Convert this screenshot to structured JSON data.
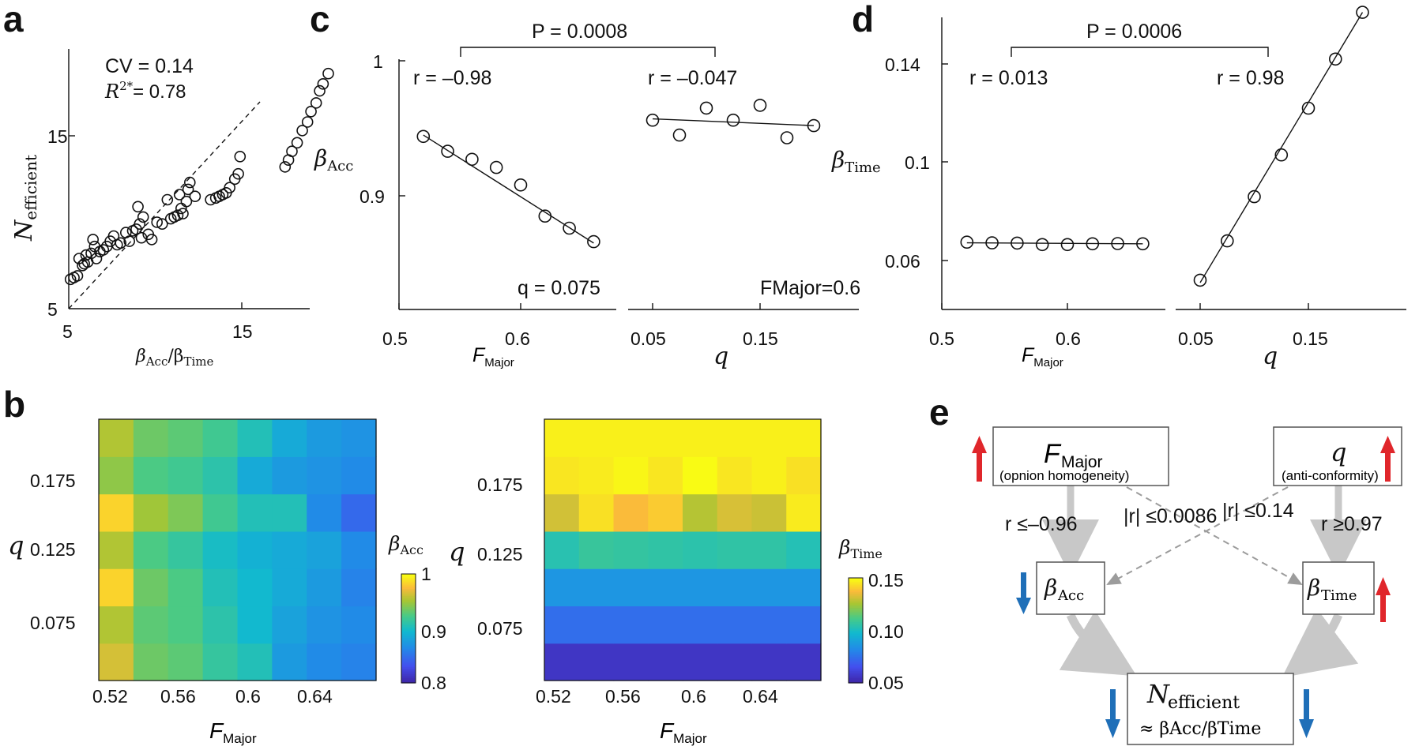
{
  "panels": {
    "a": {
      "label": "a"
    },
    "b": {
      "label": "b"
    },
    "c": {
      "label": "c"
    },
    "d": {
      "label": "d"
    },
    "e": {
      "label": "e"
    }
  },
  "chart_data": [
    {
      "id": "a",
      "type": "scatter",
      "xlabel": "βAcc/βTime",
      "ylabel": "Nefficient",
      "xlim": [
        5,
        21
      ],
      "ylim": [
        5,
        20
      ],
      "xticks": [
        "5",
        "15"
      ],
      "yticks": [
        "5",
        "15"
      ],
      "annotations": [
        "CV = 0.14",
        "R2*= 0.78"
      ],
      "reference_line": "dashed y = x",
      "x": [
        5.1,
        5.3,
        5.5,
        5.8,
        5.6,
        5.9,
        6.1,
        6.0,
        6.3,
        6.5,
        6.6,
        6.8,
        6.4,
        7.0,
        7.2,
        7.4,
        7.6,
        7.8,
        8.0,
        8.3,
        8.5,
        8.7,
        8.9,
        9.1,
        9.3,
        9.6,
        9.2,
        9.0,
        9.8,
        10.1,
        10.4,
        10.7,
        10.9,
        11.1,
        11.3,
        11.6,
        11.5,
        11.8,
        11.4,
        11.9,
        12.0,
        12.3,
        13.2,
        13.5,
        13.7,
        13.9,
        14.1,
        14.3,
        14.6,
        14.8,
        14.9,
        17.5,
        17.7,
        17.9,
        18.2,
        18.5,
        18.8,
        19.0,
        19.3,
        19.5,
        19.7,
        20.0
      ],
      "y": [
        6.7,
        6.8,
        6.9,
        7.5,
        7.9,
        7.6,
        7.7,
        8.1,
        8.2,
        8.6,
        7.9,
        8.3,
        9.0,
        8.4,
        8.6,
        8.9,
        9.2,
        8.7,
        8.8,
        9.4,
        8.9,
        9.5,
        9.6,
        9.9,
        10.3,
        9.3,
        9.1,
        10.9,
        9.0,
        10.0,
        9.9,
        11.3,
        10.2,
        10.3,
        10.4,
        10.5,
        10.8,
        11.2,
        11.6,
        11.9,
        12.3,
        11.5,
        11.3,
        11.4,
        11.5,
        11.6,
        11.7,
        12.0,
        12.5,
        12.8,
        13.8,
        13.2,
        13.6,
        14.1,
        14.6,
        15.3,
        15.8,
        16.4,
        16.9,
        17.6,
        18.0,
        18.6
      ]
    },
    {
      "id": "b-left",
      "type": "heatmap",
      "xlabel": "FMajor",
      "ylabel": "q",
      "colorbar_label": "βAcc",
      "colorbar_ticks": [
        "1",
        "0.9",
        "0.8"
      ],
      "clim": [
        0.8,
        1.0
      ],
      "xticks": [
        "0.52",
        "0.56",
        "0.6",
        "0.64"
      ],
      "yticks": [
        "0.175",
        "0.125",
        "0.075"
      ],
      "x_cells": [
        0.52,
        0.54,
        0.56,
        0.58,
        0.6,
        0.62,
        0.64,
        0.66
      ],
      "y_cells": [
        0.05,
        0.075,
        0.1,
        0.125,
        0.15,
        0.175,
        0.2
      ],
      "z": [
        [
          0.965,
          0.935,
          0.93,
          0.915,
          0.905,
          0.875,
          0.865,
          0.86
        ],
        [
          0.955,
          0.93,
          0.925,
          0.91,
          0.895,
          0.88,
          0.87,
          0.865
        ],
        [
          0.985,
          0.935,
          0.925,
          0.905,
          0.895,
          0.885,
          0.875,
          0.86
        ],
        [
          0.955,
          0.925,
          0.915,
          0.9,
          0.89,
          0.885,
          0.88,
          0.865
        ],
        [
          0.985,
          0.95,
          0.94,
          0.92,
          0.905,
          0.905,
          0.865,
          0.845
        ],
        [
          0.945,
          0.925,
          0.92,
          0.91,
          0.885,
          0.875,
          0.87,
          0.865
        ],
        [
          0.955,
          0.935,
          0.93,
          0.92,
          0.905,
          0.885,
          0.875,
          0.87
        ]
      ]
    },
    {
      "id": "b-right",
      "type": "heatmap",
      "xlabel": "FMajor",
      "ylabel": "q",
      "colorbar_label": "βTime",
      "colorbar_ticks": [
        "0.15",
        "0.10",
        "0.05"
      ],
      "clim": [
        0.05,
        0.15
      ],
      "xticks": [
        "0.52",
        "0.56",
        "0.6",
        "0.64"
      ],
      "yticks": [
        "0.175",
        "0.125",
        "0.075"
      ],
      "x_cells": [
        0.52,
        0.54,
        0.56,
        0.58,
        0.6,
        0.62,
        0.64,
        0.66
      ],
      "y_cells": [
        0.05,
        0.075,
        0.1,
        0.125,
        0.15,
        0.175,
        0.2
      ],
      "z": [
        [
          0.056,
          0.056,
          0.056,
          0.056,
          0.056,
          0.056,
          0.056,
          0.056
        ],
        [
          0.074,
          0.074,
          0.074,
          0.074,
          0.074,
          0.074,
          0.074,
          0.074
        ],
        [
          0.086,
          0.086,
          0.086,
          0.086,
          0.086,
          0.086,
          0.086,
          0.086
        ],
        [
          0.104,
          0.108,
          0.107,
          0.106,
          0.105,
          0.106,
          0.106,
          0.103
        ],
        [
          0.132,
          0.145,
          0.138,
          0.141,
          0.128,
          0.133,
          0.131,
          0.147
        ],
        [
          0.146,
          0.147,
          0.149,
          0.146,
          0.15,
          0.146,
          0.148,
          0.145
        ],
        [
          0.148,
          0.148,
          0.148,
          0.148,
          0.148,
          0.148,
          0.148,
          0.148
        ]
      ]
    },
    {
      "id": "c-left",
      "type": "scatter",
      "xlabel": "FMajor",
      "ylabel": "βAcc",
      "ylim": [
        0.84,
        1.0
      ],
      "xlim": [
        0.5,
        0.68
      ],
      "xticks": [
        "0.5",
        "0.6"
      ],
      "yticks": [
        "1",
        "0.9"
      ],
      "annotations": [
        "r = –0.98",
        "q = 0.075"
      ],
      "x": [
        0.52,
        0.54,
        0.56,
        0.58,
        0.6,
        0.62,
        0.64,
        0.66
      ],
      "y": [
        0.944,
        0.933,
        0.927,
        0.921,
        0.908,
        0.885,
        0.876,
        0.866
      ],
      "fit": [
        [
          0.52,
          0.945
        ],
        [
          0.66,
          0.865
        ]
      ]
    },
    {
      "id": "c-right",
      "type": "scatter",
      "xlabel": "q",
      "ylabel": "",
      "xlim": [
        0.035,
        0.215
      ],
      "ylim": [
        0.84,
        1.0
      ],
      "xticks": [
        "0.05",
        "0.15"
      ],
      "annotations": [
        "r = –0.047",
        "FMajor=0.6"
      ],
      "x": [
        0.05,
        0.075,
        0.1,
        0.125,
        0.15,
        0.175,
        0.2
      ],
      "y": [
        0.956,
        0.945,
        0.965,
        0.956,
        0.967,
        0.943,
        0.952
      ],
      "fit": [
        [
          0.05,
          0.957
        ],
        [
          0.2,
          0.952
        ]
      ]
    },
    {
      "id": "c-comparison",
      "annotations": [
        "P = 0.0008"
      ]
    },
    {
      "id": "d-left",
      "type": "scatter",
      "xlabel": "FMajor",
      "ylabel": "βTime",
      "xlim": [
        0.5,
        0.68
      ],
      "ylim": [
        0.03,
        0.16
      ],
      "xticks": [
        "0.5",
        "0.6"
      ],
      "yticks": [
        "0.14",
        "0.1",
        "0.06"
      ],
      "annotations": [
        "r = 0.013"
      ],
      "x": [
        0.52,
        0.54,
        0.56,
        0.58,
        0.6,
        0.62,
        0.64,
        0.66
      ],
      "y": [
        0.0675,
        0.0672,
        0.0671,
        0.0665,
        0.0665,
        0.0668,
        0.0669,
        0.0668
      ],
      "fit": [
        [
          0.52,
          0.0672
        ],
        [
          0.66,
          0.0668
        ]
      ]
    },
    {
      "id": "d-right",
      "type": "scatter",
      "xlabel": "q",
      "ylabel": "",
      "xlim": [
        0.035,
        0.215
      ],
      "ylim": [
        0.03,
        0.16
      ],
      "xticks": [
        "0.05",
        "0.15"
      ],
      "annotations": [
        "r = 0.98"
      ],
      "x": [
        0.05,
        0.075,
        0.1,
        0.125,
        0.15,
        0.175,
        0.2
      ],
      "y": [
        0.052,
        0.068,
        0.086,
        0.103,
        0.122,
        0.142,
        0.161
      ],
      "fit": [
        [
          0.05,
          0.051
        ],
        [
          0.2,
          0.161
        ]
      ]
    },
    {
      "id": "d-comparison",
      "annotations": [
        "P = 0.0006"
      ]
    }
  ],
  "diagram_e": {
    "box_fmajor_sym": "F",
    "box_fmajor_sub": "Major",
    "box_fmajor_desc": "(opnion homogeneity)",
    "box_q_sym": "q",
    "box_q_desc": "(anti-conformity)",
    "box_bacc_sym": "β",
    "box_bacc_sub": "Acc",
    "box_btime_sym": "β",
    "box_btime_sub": "Time",
    "box_neff_sym": "N",
    "box_neff_sub": "efficient",
    "box_neff_approx": "≈ βAcc/βTime",
    "r_fmajor_bacc": "r ≤–0.96",
    "r_fmajor_btime": "|r| ≤0.0086",
    "r_q_bacc": "|r| ≤0.14",
    "r_q_btime": "r ≥0.97",
    "colors": {
      "up": "#e0262b",
      "down": "#1f6fb8",
      "strong": "#c8c8c8",
      "weak": "#9c9c9c"
    }
  }
}
